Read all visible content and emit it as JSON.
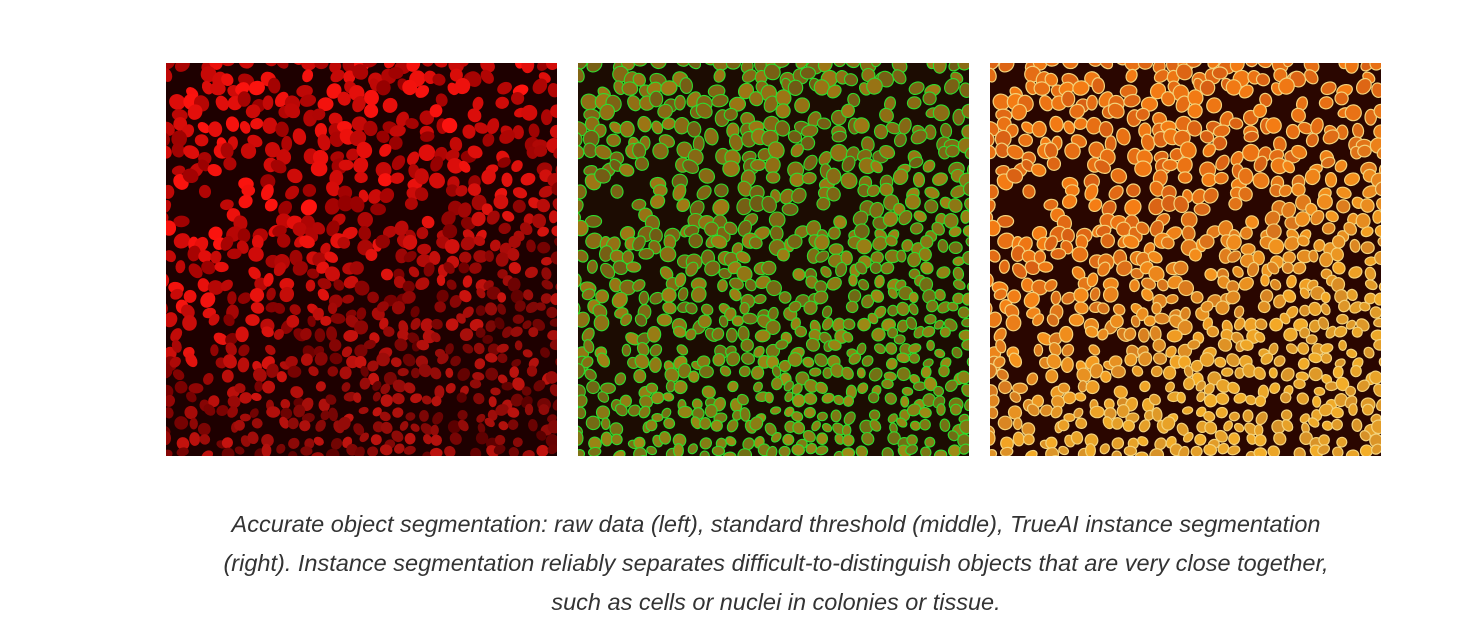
{
  "caption": {
    "lines": [
      "Accurate object segmentation: raw data (left), standard threshold (middle), TrueAI instance segmentation",
      "(right). Instance segmentation reliably separates difficult-to-distinguish objects that are very close together,",
      "such as cells or nuclei in colonies or tissue."
    ]
  }
}
